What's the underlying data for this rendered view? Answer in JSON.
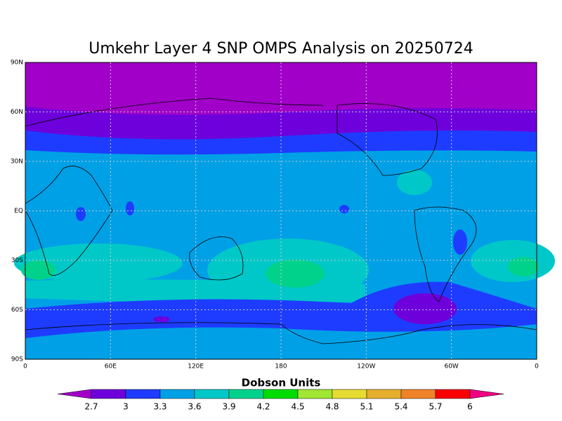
{
  "title": "Umkehr Layer 4 SNP OMPS Analysis on 20250724",
  "map": {
    "lon_labels": [
      "0",
      "60E",
      "120E",
      "180",
      "120W",
      "60W",
      "0"
    ],
    "lat_labels": [
      "90N",
      "60N",
      "30N",
      "EQ",
      "30S",
      "60S",
      "90S"
    ]
  },
  "colorbar": {
    "title": "Dobson Units",
    "levels": [
      2.7,
      3,
      3.3,
      3.6,
      3.9,
      4.2,
      4.5,
      4.8,
      5.1,
      5.4,
      5.7,
      6
    ],
    "colors": [
      "#a000c8",
      "#6e00dc",
      "#1e3cff",
      "#00a0e6",
      "#00c8c8",
      "#00d28c",
      "#00dc00",
      "#a0e632",
      "#e6dc32",
      "#e6af2d",
      "#f08228",
      "#fa0000",
      "#f00082"
    ]
  }
}
